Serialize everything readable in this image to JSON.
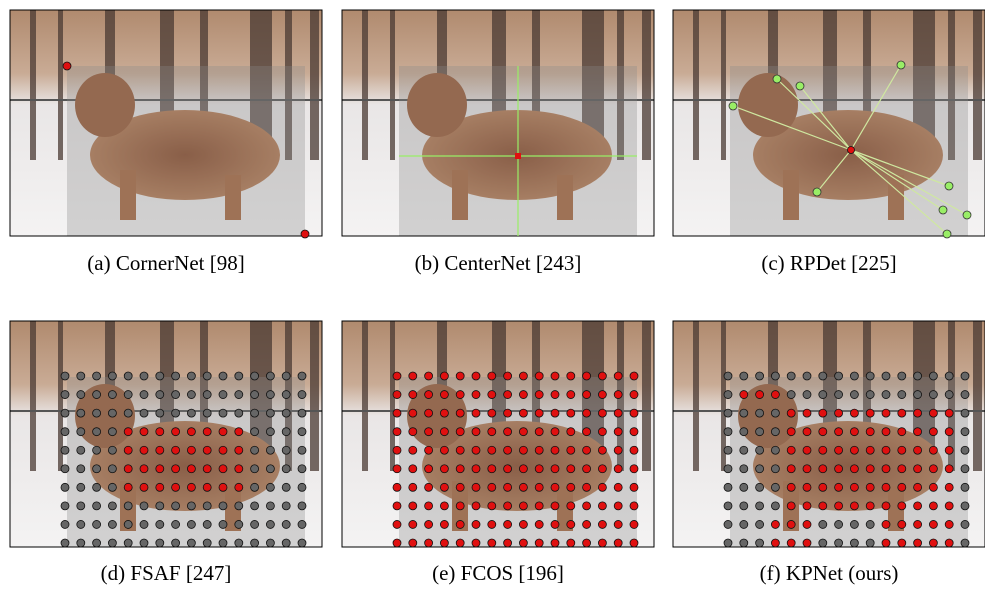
{
  "panels": [
    {
      "caption": "(a)  CornerNet [98]"
    },
    {
      "caption": "(b)  CenterNet [243]"
    },
    {
      "caption": "(c)  RPDet [225]"
    },
    {
      "caption": "(d)  FSAF [247]"
    },
    {
      "caption": "(e)  FCOS [196]"
    },
    {
      "caption": "(f)  KPNet (ours)"
    }
  ]
}
